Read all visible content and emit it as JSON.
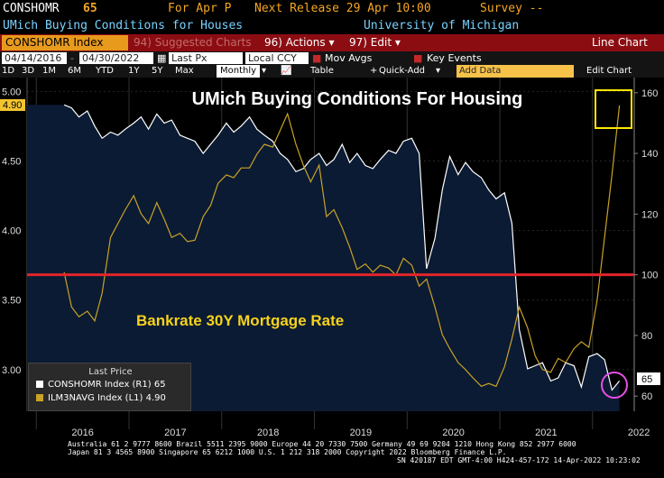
{
  "header": {
    "ticker": "CONSHOMR",
    "value": "65",
    "for_label": "For Apr P",
    "next_release": "Next Release 29 Apr 10:00",
    "survey": "Survey --",
    "description": "UMich Buying Conditions for Houses",
    "source": "University of Michigan"
  },
  "toolbar": {
    "ticker_box": "CONSHOMR Index",
    "suggested": "94) Suggested Charts",
    "actions_num": "96)",
    "actions": "Actions",
    "edit_num": "97)",
    "edit": "Edit",
    "chart_type": "Line Chart"
  },
  "range": {
    "start": "04/14/2016",
    "end": "04/30/2022",
    "field": "Last Px",
    "currency": "Local CCY",
    "mov_avgs": "Mov Avgs",
    "key_events": "Key Events"
  },
  "periods": {
    "items": [
      "1D",
      "3D",
      "1M",
      "6M",
      "YTD",
      "1Y",
      "5Y",
      "Max"
    ],
    "frequency": "Monthly",
    "table": "Table",
    "quick_add": "Quick-Add",
    "add_data": "Add Data",
    "edit_chart": "Edit Chart"
  },
  "chart_data": {
    "type": "line",
    "title": "UMich Buying Conditions For Housing",
    "annotation": "Bankrate 30Y Mortgage Rate",
    "x_ticks": [
      "2016",
      "2017",
      "2018",
      "2019",
      "2020",
      "2021",
      "2022"
    ],
    "left_axis": {
      "ticks": [
        "3.00",
        "3.50",
        "4.00",
        "4.50",
        "5.00"
      ],
      "range": [
        2.7,
        5.1
      ],
      "last_label": "4.90"
    },
    "right_axis": {
      "ticks": [
        "60",
        "80",
        "100",
        "120",
        "140",
        "160"
      ],
      "range": [
        55,
        165
      ],
      "last_label": "65"
    },
    "reference_line_value": 100,
    "series": [
      {
        "name": "CONSHOMR Index (R1) 65",
        "axis": "right",
        "color": "#ffffff",
        "x": [
          2016.3,
          2016.38,
          2016.46,
          2016.55,
          2016.63,
          2016.71,
          2016.8,
          2016.88,
          2016.96,
          2017.05,
          2017.13,
          2017.21,
          2017.3,
          2017.38,
          2017.46,
          2017.55,
          2017.63,
          2017.71,
          2017.8,
          2017.88,
          2017.96,
          2018.05,
          2018.13,
          2018.21,
          2018.3,
          2018.38,
          2018.46,
          2018.55,
          2018.63,
          2018.71,
          2018.8,
          2018.88,
          2018.96,
          2019.05,
          2019.13,
          2019.21,
          2019.3,
          2019.38,
          2019.46,
          2019.55,
          2019.63,
          2019.71,
          2019.8,
          2019.88,
          2019.96,
          2020.05,
          2020.13,
          2020.21,
          2020.3,
          2020.38,
          2020.46,
          2020.55,
          2020.63,
          2020.71,
          2020.8,
          2020.88,
          2020.96,
          2021.05,
          2021.13,
          2021.21,
          2021.3,
          2021.38,
          2021.46,
          2021.55,
          2021.63,
          2021.71,
          2021.8,
          2021.88,
          2021.96,
          2022.05,
          2022.13,
          2022.21,
          2022.29
        ],
        "values": [
          156,
          155,
          152,
          154,
          149,
          145,
          147,
          146,
          148,
          150,
          152,
          148,
          153,
          150,
          151,
          146,
          145,
          144,
          140,
          143,
          146,
          150,
          147,
          149,
          152,
          148,
          146,
          144,
          140,
          138,
          134,
          135,
          138,
          140,
          136,
          138,
          143,
          137,
          140,
          136,
          135,
          138,
          141,
          140,
          144,
          145,
          140,
          102,
          112,
          128,
          139,
          133,
          137,
          134,
          132,
          128,
          125,
          127,
          117,
          82,
          69,
          70,
          71,
          65,
          66,
          71,
          70,
          63,
          73,
          74,
          72,
          62,
          65
        ]
      },
      {
        "name": "ILM3NAVG Index (L1) 4.90",
        "axis": "left",
        "color": "#c9a227",
        "x": [
          2016.3,
          2016.38,
          2016.46,
          2016.55,
          2016.63,
          2016.71,
          2016.8,
          2016.88,
          2016.96,
          2017.05,
          2017.13,
          2017.21,
          2017.3,
          2017.38,
          2017.46,
          2017.55,
          2017.63,
          2017.71,
          2017.8,
          2017.88,
          2017.96,
          2018.05,
          2018.13,
          2018.21,
          2018.3,
          2018.38,
          2018.46,
          2018.55,
          2018.63,
          2018.71,
          2018.8,
          2018.88,
          2018.96,
          2019.05,
          2019.13,
          2019.21,
          2019.3,
          2019.38,
          2019.46,
          2019.55,
          2019.63,
          2019.71,
          2019.8,
          2019.88,
          2019.96,
          2020.05,
          2020.13,
          2020.21,
          2020.3,
          2020.38,
          2020.46,
          2020.55,
          2020.63,
          2020.71,
          2020.8,
          2020.88,
          2020.96,
          2021.05,
          2021.13,
          2021.21,
          2021.3,
          2021.38,
          2021.46,
          2021.55,
          2021.63,
          2021.71,
          2021.8,
          2021.88,
          2021.96,
          2022.05,
          2022.13,
          2022.21,
          2022.29
        ],
        "values": [
          3.7,
          3.45,
          3.38,
          3.42,
          3.35,
          3.55,
          3.95,
          4.05,
          4.15,
          4.25,
          4.12,
          4.05,
          4.2,
          4.08,
          3.95,
          3.98,
          3.92,
          3.93,
          4.1,
          4.18,
          4.34,
          4.4,
          4.38,
          4.45,
          4.45,
          4.55,
          4.62,
          4.6,
          4.72,
          4.84,
          4.62,
          4.47,
          4.35,
          4.47,
          4.1,
          4.15,
          4.02,
          3.88,
          3.72,
          3.76,
          3.7,
          3.75,
          3.73,
          3.68,
          3.8,
          3.75,
          3.6,
          3.65,
          3.45,
          3.25,
          3.15,
          3.05,
          3.0,
          2.94,
          2.88,
          2.9,
          2.88,
          3.02,
          3.22,
          3.45,
          3.3,
          3.1,
          3.0,
          2.98,
          3.08,
          3.05,
          3.15,
          3.2,
          3.16,
          3.5,
          3.95,
          4.4,
          4.9
        ]
      }
    ],
    "legend_title": "Last Price",
    "legend_values": [
      "65",
      "4.90"
    ]
  },
  "footer": {
    "line1": "Australia 61 2 9777 8600 Brazil 5511 2395 9000 Europe 44 20 7330 7500 Germany 49 69 9204 1210 Hong Kong 852 2977 6000",
    "line2": "Japan 81 3 4565 8900        Singapore 65 6212 1000        U.S. 1 212 318 2000              Copyright 2022 Bloomberg Finance L.P.",
    "line3": "SN 420187 EDT  GMT-4:00 H424-457-172 14-Apr-2022 10:23:02"
  }
}
